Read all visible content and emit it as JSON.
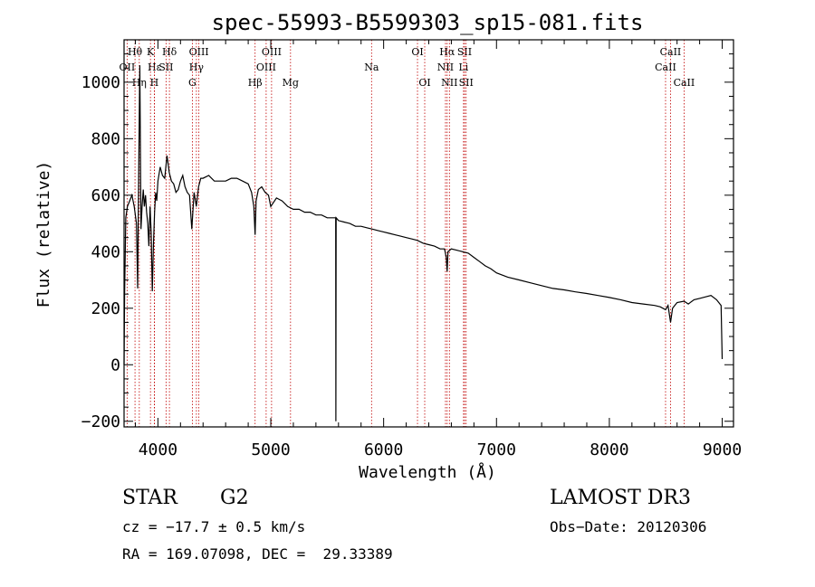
{
  "chart_data": {
    "type": "line",
    "title": "spec-55993-B5599303_sp15-081.fits",
    "xlabel": "Wavelength (Å)",
    "ylabel": "Flux (relative)",
    "xlim": [
      3700,
      9100
    ],
    "ylim": [
      -220,
      1150
    ],
    "xticks": [
      4000,
      5000,
      6000,
      7000,
      8000,
      9000
    ],
    "yticks": [
      -200,
      0,
      200,
      400,
      600,
      800,
      1000
    ],
    "series": [
      {
        "name": "flux",
        "x": [
          3700,
          3705,
          3715,
          3730,
          3750,
          3770,
          3790,
          3810,
          3820,
          3830,
          3840,
          3850,
          3860,
          3870,
          3880,
          3890,
          3900,
          3910,
          3920,
          3930,
          3940,
          3950,
          3960,
          3970,
          3980,
          3990,
          4000,
          4020,
          4040,
          4060,
          4080,
          4100,
          4120,
          4140,
          4160,
          4180,
          4200,
          4220,
          4240,
          4260,
          4280,
          4300,
          4320,
          4340,
          4360,
          4380,
          4400,
          4450,
          4500,
          4550,
          4600,
          4650,
          4700,
          4750,
          4800,
          4830,
          4850,
          4861,
          4870,
          4890,
          4920,
          4950,
          4980,
          5000,
          5050,
          5100,
          5150,
          5200,
          5250,
          5300,
          5350,
          5400,
          5450,
          5500,
          5550,
          5575,
          5577,
          5579,
          5600,
          5650,
          5700,
          5750,
          5800,
          5850,
          5900,
          5950,
          6000,
          6050,
          6100,
          6150,
          6200,
          6250,
          6300,
          6350,
          6400,
          6450,
          6500,
          6540,
          6555,
          6563,
          6570,
          6600,
          6650,
          6700,
          6750,
          6800,
          6850,
          6900,
          6950,
          7000,
          7100,
          7200,
          7300,
          7400,
          7500,
          7600,
          7700,
          7800,
          7900,
          8000,
          8100,
          8200,
          8300,
          8400,
          8450,
          8498,
          8520,
          8542,
          8560,
          8600,
          8662,
          8700,
          8750,
          8800,
          8850,
          8900,
          8950,
          8990,
          9000
        ],
        "values": [
          0,
          250,
          520,
          560,
          580,
          600,
          560,
          500,
          270,
          690,
          1060,
          480,
          560,
          620,
          560,
          600,
          540,
          500,
          420,
          560,
          470,
          260,
          420,
          540,
          610,
          580,
          650,
          700,
          670,
          660,
          740,
          680,
          650,
          640,
          610,
          620,
          650,
          670,
          630,
          610,
          600,
          480,
          610,
          560,
          630,
          660,
          660,
          670,
          650,
          650,
          650,
          660,
          660,
          650,
          640,
          610,
          560,
          460,
          580,
          620,
          630,
          610,
          600,
          560,
          590,
          580,
          560,
          550,
          550,
          540,
          540,
          530,
          530,
          520,
          520,
          520,
          -200,
          520,
          510,
          505,
          500,
          490,
          490,
          485,
          480,
          475,
          470,
          465,
          460,
          455,
          450,
          445,
          440,
          430,
          425,
          420,
          410,
          410,
          380,
          330,
          400,
          410,
          405,
          400,
          395,
          380,
          365,
          350,
          340,
          325,
          310,
          300,
          290,
          280,
          270,
          265,
          258,
          252,
          245,
          238,
          230,
          220,
          215,
          210,
          205,
          195,
          210,
          150,
          200,
          220,
          225,
          215,
          230,
          235,
          240,
          245,
          230,
          210,
          20
        ]
      }
    ],
    "line_markers": [
      {
        "label": "Hθ",
        "x": 3797,
        "row": 1
      },
      {
        "label": "OII",
        "x": 3727,
        "row": 2
      },
      {
        "label": "Hη",
        "x": 3835,
        "row": 3
      },
      {
        "label": "K",
        "x": 3934,
        "row": 1
      },
      {
        "label": "Hε",
        "x": 3970,
        "row": 2
      },
      {
        "label": "H",
        "x": 3968,
        "row": 3
      },
      {
        "label": "Hδ",
        "x": 4102,
        "row": 1
      },
      {
        "label": "SII",
        "x": 4072,
        "row": 2
      },
      {
        "label": "OIII",
        "x": 4363,
        "row": 1
      },
      {
        "label": "Hγ",
        "x": 4341,
        "row": 2
      },
      {
        "label": "G",
        "x": 4305,
        "row": 3
      },
      {
        "label": "Hβ",
        "x": 4861,
        "row": 3
      },
      {
        "label": "OIII",
        "x": 5007,
        "row": 1
      },
      {
        "label": "OIII",
        "x": 4959,
        "row": 2
      },
      {
        "label": "Mg",
        "x": 5175,
        "row": 3
      },
      {
        "label": "Na",
        "x": 5893,
        "row": 2
      },
      {
        "label": "OI",
        "x": 6300,
        "row": 1
      },
      {
        "label": "OI",
        "x": 6364,
        "row": 3
      },
      {
        "label": "Hα",
        "x": 6563,
        "row": 1
      },
      {
        "label": "NII",
        "x": 6548,
        "row": 2
      },
      {
        "label": "NII",
        "x": 6583,
        "row": 3
      },
      {
        "label": "SII",
        "x": 6717,
        "row": 1
      },
      {
        "label": "Li",
        "x": 6708,
        "row": 2
      },
      {
        "label": "SII",
        "x": 6731,
        "row": 3
      },
      {
        "label": "CaII",
        "x": 8542,
        "row": 1
      },
      {
        "label": "CaII",
        "x": 8498,
        "row": 2
      },
      {
        "label": "CaII",
        "x": 8662,
        "row": 3
      }
    ],
    "grid": false
  },
  "info": {
    "class_label": "STAR",
    "subclass_label": "G2",
    "survey": "LAMOST DR3",
    "cz": "cz = −17.7 ± 0.5 km/s",
    "obs_date": "Obs−Date: 20120306",
    "radec": "RA = 169.07098, DEC =  29.33389"
  }
}
